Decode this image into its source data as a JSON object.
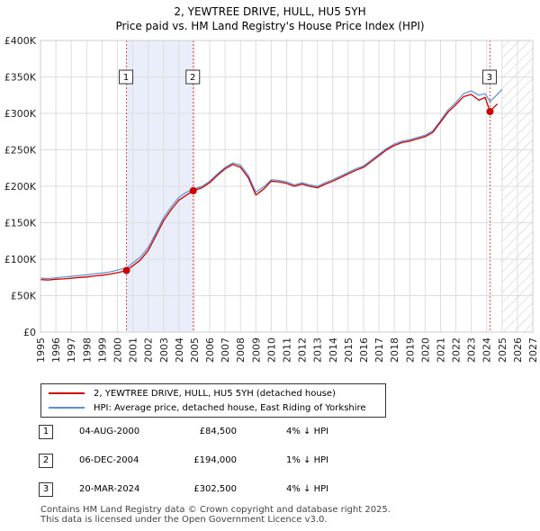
{
  "title_line1": "2, YEWTREE DRIVE, HULL, HU5 5YH",
  "title_line2": "Price paid vs. HM Land Registry's House Price Index (HPI)",
  "chart_data": {
    "type": "line",
    "xlim": [
      1995,
      2027
    ],
    "ylim": [
      0,
      400000
    ],
    "x_ticks": [
      "1995",
      "1996",
      "1997",
      "1998",
      "1999",
      "2000",
      "2001",
      "2002",
      "2003",
      "2004",
      "2005",
      "2006",
      "2007",
      "2008",
      "2009",
      "2010",
      "2011",
      "2012",
      "2013",
      "2014",
      "2015",
      "2016",
      "2017",
      "2018",
      "2019",
      "2020",
      "2021",
      "2022",
      "2023",
      "2024",
      "2025",
      "2026",
      "2027"
    ],
    "y_ticks": [
      {
        "value": 0,
        "label": "£0"
      },
      {
        "value": 50000,
        "label": "£50K"
      },
      {
        "value": 100000,
        "label": "£100K"
      },
      {
        "value": 150000,
        "label": "£150K"
      },
      {
        "value": 200000,
        "label": "£200K"
      },
      {
        "value": 250000,
        "label": "£250K"
      },
      {
        "value": 300000,
        "label": "£300K"
      },
      {
        "value": 350000,
        "label": "£350K"
      },
      {
        "value": 400000,
        "label": "£400K"
      }
    ],
    "shaded_periods": [
      [
        2000.59,
        2004.93
      ]
    ],
    "hatch_from": 2025.0,
    "series": [
      {
        "name": "2, YEWTREE DRIVE, HULL, HU5 5YH (detached house)",
        "color": "#cc0000",
        "x": [
          1995.0,
          1995.5,
          1996.0,
          1996.5,
          1997.0,
          1997.5,
          1998.0,
          1998.5,
          1999.0,
          1999.5,
          2000.0,
          2000.59,
          2001.0,
          2001.5,
          2002.0,
          2002.5,
          2003.0,
          2003.5,
          2004.0,
          2004.5,
          2004.93,
          2005.5,
          2006.0,
          2006.5,
          2007.0,
          2007.5,
          2008.0,
          2008.5,
          2009.0,
          2009.5,
          2010.0,
          2010.5,
          2011.0,
          2011.5,
          2012.0,
          2012.5,
          2013.0,
          2013.5,
          2014.0,
          2014.5,
          2015.0,
          2015.5,
          2016.0,
          2016.5,
          2017.0,
          2017.5,
          2018.0,
          2018.5,
          2019.0,
          2019.5,
          2020.0,
          2020.5,
          2021.0,
          2021.5,
          2022.0,
          2022.5,
          2023.0,
          2023.5,
          2023.9,
          2024.22,
          2024.5,
          2024.7
        ],
        "y": [
          72000,
          71500,
          72500,
          73000,
          74000,
          75000,
          75500,
          77000,
          78000,
          79500,
          81500,
          84500,
          91000,
          99000,
          112000,
          132000,
          153000,
          168000,
          181000,
          188000,
          194000,
          198000,
          205000,
          215000,
          224000,
          230000,
          226000,
          212000,
          188000,
          196000,
          207000,
          206000,
          204000,
          200000,
          203000,
          200000,
          198000,
          203000,
          207000,
          212000,
          217000,
          222000,
          226000,
          234000,
          242000,
          250000,
          256000,
          260000,
          262000,
          265000,
          268000,
          274000,
          288000,
          302000,
          312000,
          323000,
          326000,
          318000,
          322000,
          302500,
          309000,
          313000
        ]
      },
      {
        "name": "HPI: Average price, detached house, East Riding of Yorkshire",
        "color": "#5b8fd0",
        "x": [
          1995.0,
          1995.5,
          1996.0,
          1996.5,
          1997.0,
          1997.5,
          1998.0,
          1998.5,
          1999.0,
          1999.5,
          2000.0,
          2000.59,
          2001.0,
          2001.5,
          2002.0,
          2002.5,
          2003.0,
          2003.5,
          2004.0,
          2004.5,
          2004.93,
          2005.5,
          2006.0,
          2006.5,
          2007.0,
          2007.5,
          2008.0,
          2008.5,
          2009.0,
          2009.5,
          2010.0,
          2010.5,
          2011.0,
          2011.5,
          2012.0,
          2012.5,
          2013.0,
          2013.5,
          2014.0,
          2014.5,
          2015.0,
          2015.5,
          2016.0,
          2016.5,
          2017.0,
          2017.5,
          2018.0,
          2018.5,
          2019.0,
          2019.5,
          2020.0,
          2020.5,
          2021.0,
          2021.5,
          2022.0,
          2022.5,
          2023.0,
          2023.5,
          2023.9,
          2024.22,
          2024.5,
          2025.0
        ],
        "y": [
          74000,
          73500,
          74500,
          75500,
          76500,
          77500,
          78500,
          80000,
          81000,
          82500,
          85000,
          88000,
          95000,
          103000,
          116000,
          136000,
          157000,
          172000,
          185000,
          192000,
          196000,
          200000,
          207000,
          217000,
          226000,
          232000,
          229000,
          215000,
          192000,
          199000,
          209000,
          208000,
          206000,
          202000,
          205000,
          202000,
          200000,
          205000,
          209000,
          214000,
          219000,
          224000,
          228000,
          236000,
          244000,
          252000,
          258000,
          262000,
          264000,
          267000,
          270000,
          276000,
          290000,
          305000,
          315000,
          327000,
          331000,
          325000,
          327000,
          316000,
          322000,
          333000
        ]
      }
    ],
    "sales": [
      {
        "label": "1",
        "x": 2000.59,
        "y": 84500
      },
      {
        "label": "2",
        "x": 2004.93,
        "y": 194000
      },
      {
        "label": "3",
        "x": 2024.22,
        "y": 302500
      }
    ]
  },
  "legend": {
    "property_label": "2, YEWTREE DRIVE, HULL, HU5 5YH (detached house)",
    "hpi_label": "HPI: Average price, detached house, East Riding of Yorkshire"
  },
  "transactions": [
    {
      "num": "1",
      "date": "04-AUG-2000",
      "price": "£84,500",
      "hpi": "4% ↓ HPI"
    },
    {
      "num": "2",
      "date": "06-DEC-2004",
      "price": "£194,000",
      "hpi": "1% ↓ HPI"
    },
    {
      "num": "3",
      "date": "20-MAR-2024",
      "price": "£302,500",
      "hpi": "4% ↓ HPI"
    }
  ],
  "footer_line1": "Contains HM Land Registry data © Crown copyright and database right 2025.",
  "footer_line2": "This data is licensed under the Open Government Licence v3.0."
}
